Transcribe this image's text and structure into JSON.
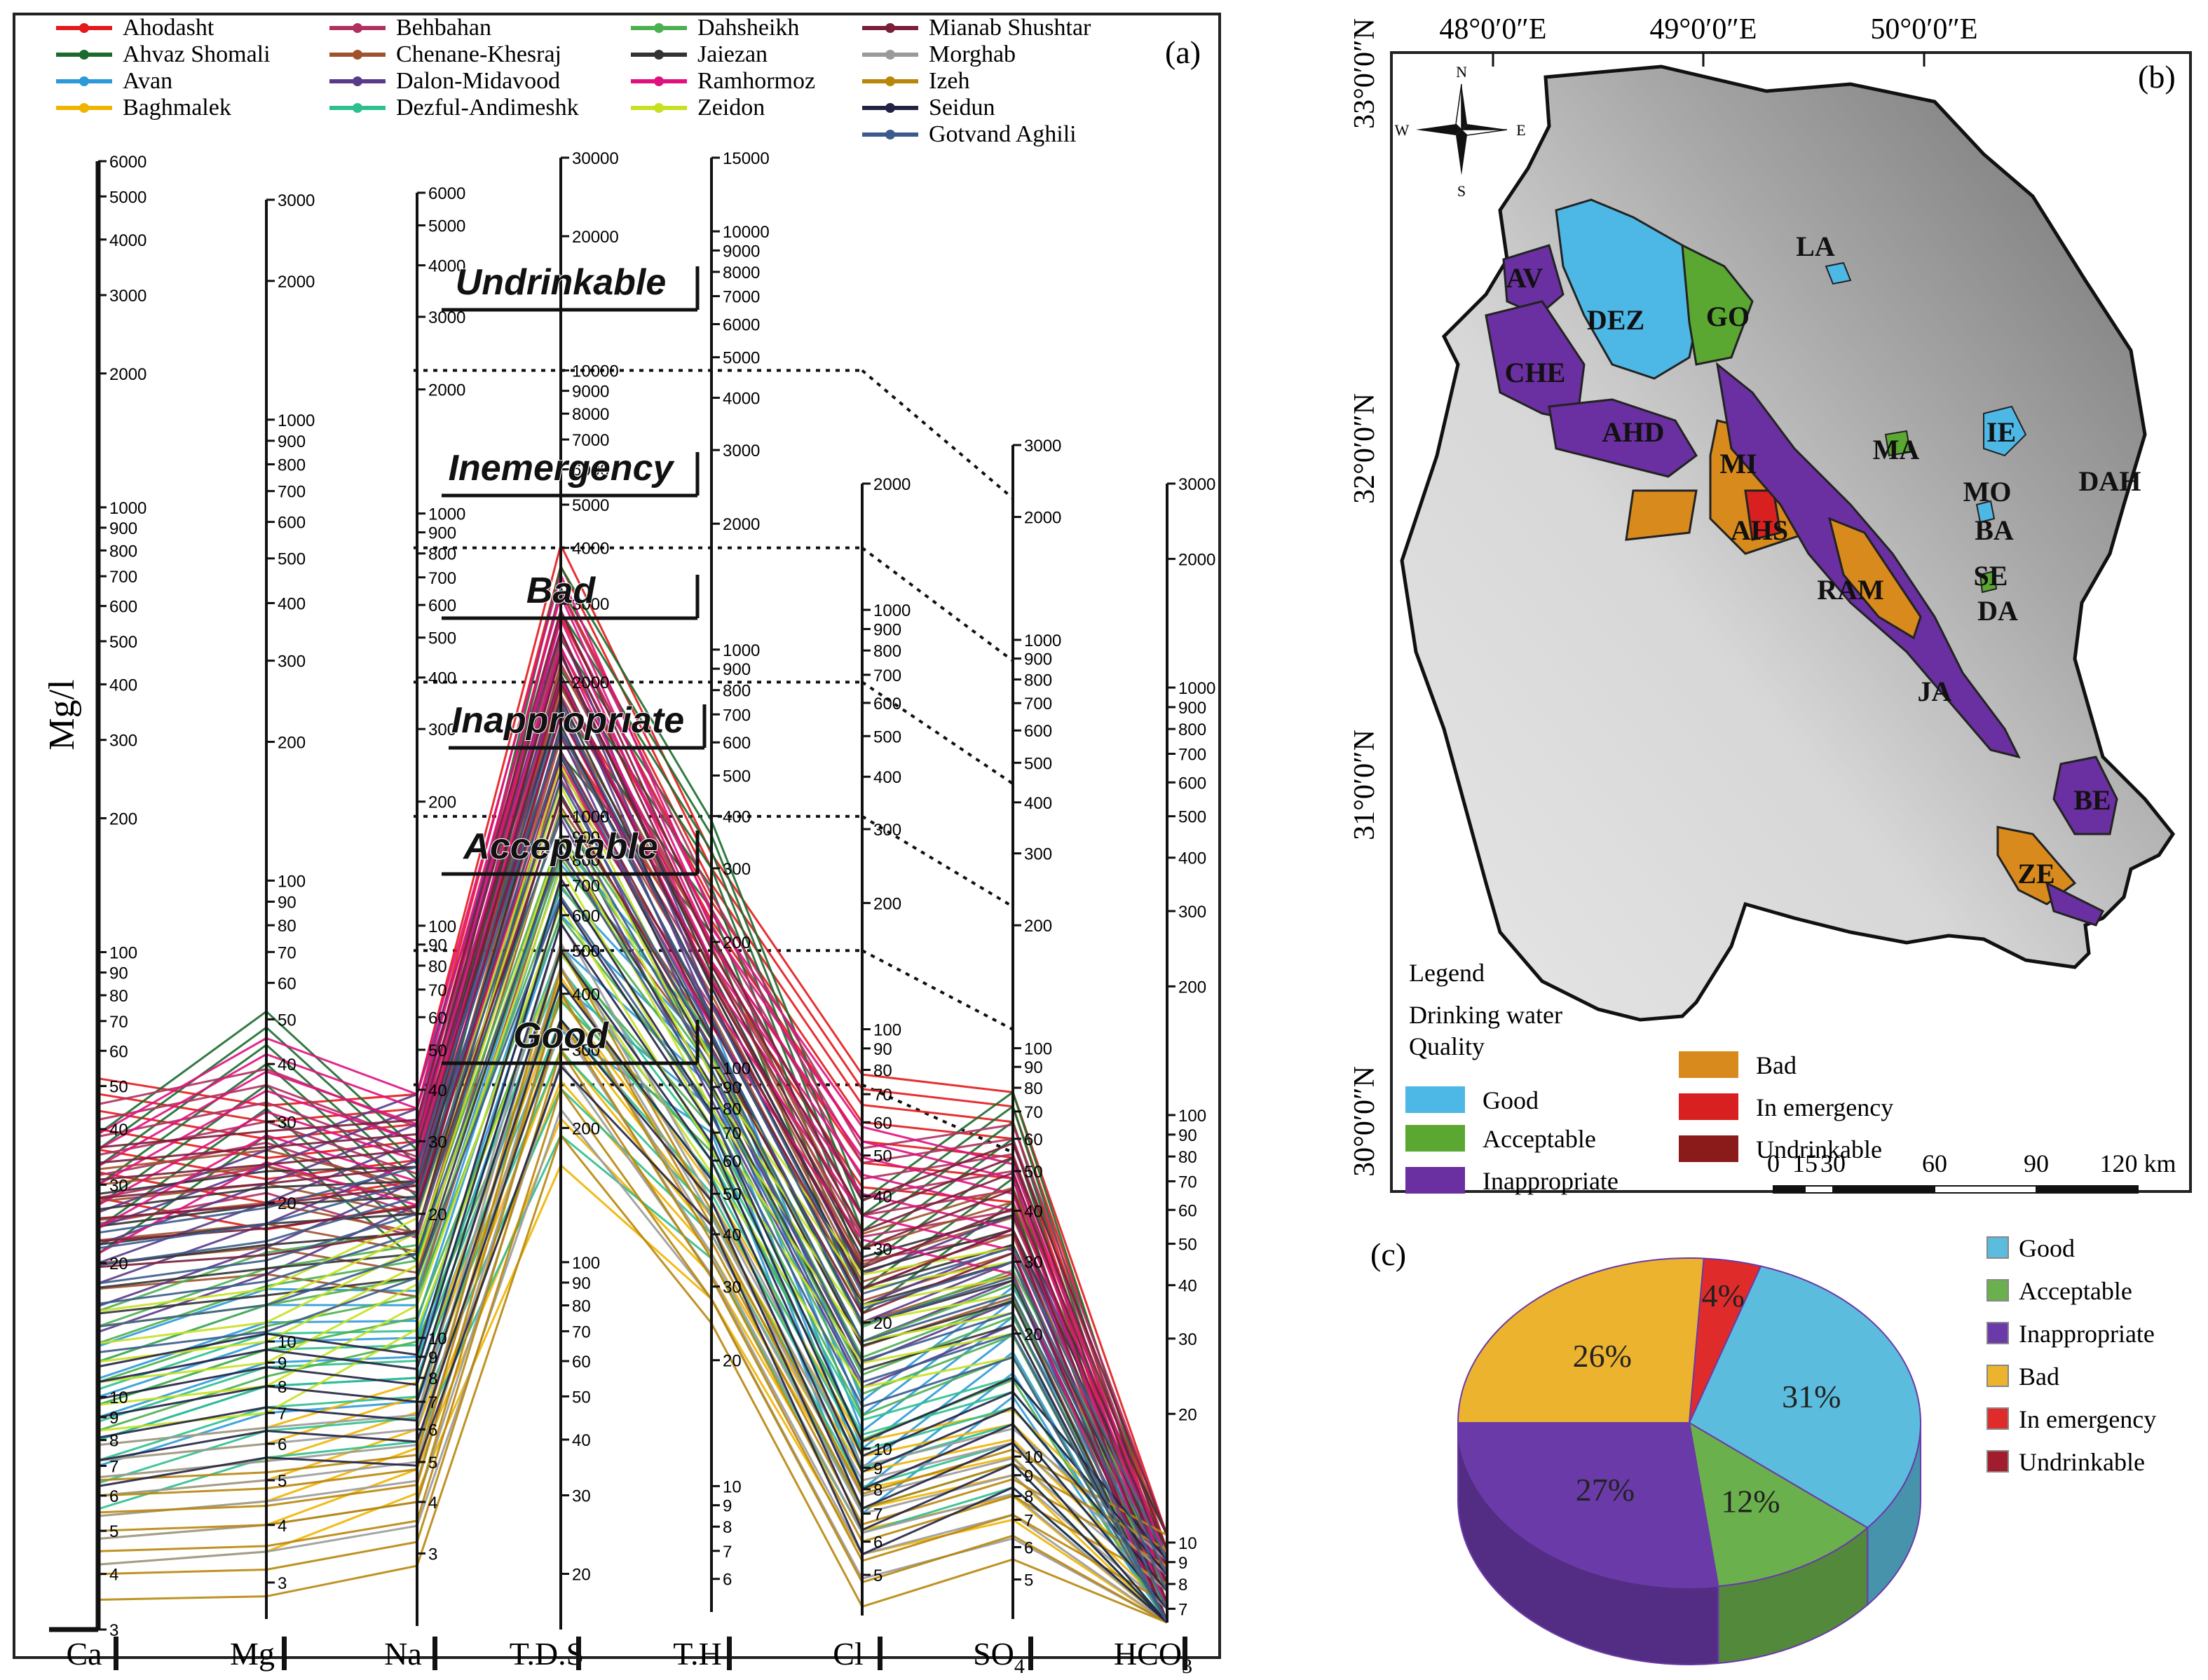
{
  "panel_a": {
    "label": "(a)",
    "y_unit": "Mg/l",
    "legend_columns": [
      [
        {
          "name": "Ahodasht",
          "color": "#e31a1c"
        },
        {
          "name": "Ahvaz Shomali",
          "color": "#1b6b2e"
        },
        {
          "name": "Avan",
          "color": "#2c9ad8"
        },
        {
          "name": "Baghmalek",
          "color": "#f0b400"
        }
      ],
      [
        {
          "name": "Behbahan",
          "color": "#b03060"
        },
        {
          "name": "Chenane-Khesraj",
          "color": "#a0522d"
        },
        {
          "name": "Dalon-Midavood",
          "color": "#5a3a8a"
        },
        {
          "name": "Dezful-Andimeshk",
          "color": "#2ebf8f"
        }
      ],
      [
        {
          "name": "Dahsheikh",
          "color": "#4caf50"
        },
        {
          "name": "Jaiezan",
          "color": "#333333"
        },
        {
          "name": "Ramhormoz",
          "color": "#e0117f"
        },
        {
          "name": "Zeidon",
          "color": "#c8e020"
        }
      ],
      [
        {
          "name": "Mianab Shushtar",
          "color": "#7b1e3a"
        },
        {
          "name": "Morghab",
          "color": "#9a9a9a"
        },
        {
          "name": "Izeh",
          "color": "#b8860b"
        },
        {
          "name": "Seidun",
          "color": "#222244"
        },
        {
          "name": "Gotvand Aghili",
          "color": "#3b5b8a"
        }
      ]
    ],
    "axes": [
      {
        "name": "Ca",
        "sub": "",
        "min": 3,
        "max": 6000,
        "ticks": [
          "6000",
          "5000",
          "4000",
          "3000",
          "2000",
          "1000",
          "900",
          "800",
          "700",
          "600",
          "500",
          "400",
          "300",
          "200",
          "100",
          "90",
          "80",
          "70",
          "60",
          "50",
          "40",
          "30",
          "20",
          "10",
          "9",
          "8",
          "7",
          "6",
          "5",
          "4",
          "3"
        ]
      },
      {
        "name": "Mg",
        "sub": "",
        "min": 2.5,
        "max": 3000,
        "ticks": [
          "3000",
          "2000",
          "1000",
          "900",
          "800",
          "700",
          "600",
          "500",
          "400",
          "300",
          "200",
          "100",
          "90",
          "80",
          "70",
          "60",
          "50",
          "40",
          "30",
          "20",
          "10",
          "9",
          "8",
          "7",
          "6",
          "5",
          "4",
          "3"
        ]
      },
      {
        "name": "Na",
        "sub": "",
        "min": 2,
        "max": 6000,
        "ticks": [
          "6000",
          "5000",
          "4000",
          "3000",
          "2000",
          "1000",
          "900",
          "800",
          "700",
          "600",
          "500",
          "400",
          "300",
          "200",
          "100",
          "90",
          "80",
          "70",
          "60",
          "50",
          "40",
          "30",
          "20",
          "10",
          "9",
          "8",
          "7",
          "6",
          "5",
          "4",
          "3"
        ]
      },
      {
        "name": "T.D.S",
        "sub": "",
        "min": 15,
        "max": 30000,
        "ticks": [
          "30000",
          "20000",
          "10000",
          "9000",
          "8000",
          "7000",
          "6000",
          "5000",
          "4000",
          "3000",
          "2000",
          "1000",
          "900",
          "800",
          "700",
          "600",
          "500",
          "400",
          "300",
          "200",
          "100",
          "90",
          "80",
          "70",
          "60",
          "50",
          "40",
          "30",
          "20"
        ]
      },
      {
        "name": "T.H",
        "sub": "",
        "min": 5,
        "max": 15000,
        "ticks": [
          "15000",
          "10000",
          "9000",
          "8000",
          "7000",
          "6000",
          "5000",
          "4000",
          "3000",
          "2000",
          "1000",
          "900",
          "800",
          "700",
          "600",
          "500",
          "400",
          "300",
          "200",
          "100",
          "90",
          "80",
          "70",
          "60",
          "50",
          "40",
          "30",
          "20",
          "10",
          "9",
          "8",
          "7",
          "6"
        ]
      },
      {
        "name": "Cl",
        "sub": "",
        "min": 4,
        "max": 2000,
        "ticks": [
          "2000",
          "1000",
          "900",
          "800",
          "700",
          "600",
          "500",
          "400",
          "300",
          "200",
          "100",
          "90",
          "80",
          "70",
          "60",
          "50",
          "40",
          "30",
          "20",
          "10",
          "9",
          "8",
          "7",
          "6",
          "5"
        ]
      },
      {
        "name": "SO",
        "sub": "4",
        "min": 4,
        "max": 3000,
        "ticks": [
          "3000",
          "2000",
          "1000",
          "900",
          "800",
          "700",
          "600",
          "500",
          "400",
          "300",
          "200",
          "100",
          "90",
          "80",
          "70",
          "60",
          "50",
          "40",
          "30",
          "20",
          "10",
          "9",
          "8",
          "7",
          "6",
          "5"
        ]
      },
      {
        "name": "HCO",
        "sub": "3",
        "min": 6.5,
        "max": 3000,
        "ticks": [
          "3000",
          "2000",
          "1000",
          "900",
          "800",
          "700",
          "600",
          "500",
          "400",
          "300",
          "200",
          "100",
          "90",
          "80",
          "70",
          "60",
          "50",
          "40",
          "30",
          "20",
          "10",
          "9",
          "8",
          "7"
        ]
      }
    ],
    "classes": [
      "Undrinkable",
      "Inemergency",
      "Bad",
      "Inappropriate",
      "Acceptable",
      "Good"
    ]
  },
  "panel_b": {
    "label": "(b)",
    "lon_labels": [
      "48°0′0″E",
      "49°0′0″E",
      "50°0′0″E"
    ],
    "lat_labels": [
      "33°0′0″N",
      "32°0′0″N",
      "31°0′0″N",
      "30°0′0″N"
    ],
    "compass": {
      "n": "N",
      "s": "S",
      "e": "E",
      "w": "W"
    },
    "region_labels": [
      "LA",
      "AV",
      "DEZ",
      "GO",
      "CHE",
      "AHD",
      "MI",
      "AHS",
      "MA",
      "IE",
      "MO",
      "DAH",
      "BA",
      "SE",
      "DA",
      "RAM",
      "JA",
      "BE",
      "ZE"
    ],
    "legend_title": "Legend",
    "legend_subtitle_1": "Drinking water",
    "legend_subtitle_2": "Quality",
    "legend_items": [
      {
        "name": "Good",
        "color": "#4db8e6"
      },
      {
        "name": "Acceptable",
        "color": "#5aa832"
      },
      {
        "name": "Inappropriate",
        "color": "#6a2fa0"
      },
      {
        "name": "Bad",
        "color": "#d98a1c"
      },
      {
        "name": "In emergency",
        "color": "#d92020"
      },
      {
        "name": "Undrinkable",
        "color": "#8b1a1a"
      }
    ],
    "scale_ticks": [
      "0",
      "15",
      "30",
      "60",
      "90",
      "120 km"
    ]
  },
  "panel_c": {
    "label": "(c)",
    "legend": [
      {
        "name": "Good",
        "color": "#5bbcdd"
      },
      {
        "name": "Acceptable",
        "color": "#6ab04c"
      },
      {
        "name": "Inappropriate",
        "color": "#6a3aa8"
      },
      {
        "name": "Bad",
        "color": "#ecb32e"
      },
      {
        "name": "In emergency",
        "color": "#e02b2b"
      },
      {
        "name": "Undrinkable",
        "color": "#a11c2c"
      }
    ]
  },
  "chart_data": [
    {
      "type": "line",
      "subtype": "schoeller-diagram",
      "axes": [
        "Ca",
        "Mg",
        "Na",
        "T.D.S",
        "T.H",
        "Cl",
        "SO4",
        "HCO3"
      ],
      "ylabel": "Mg/l",
      "scale": "log",
      "series": [
        {
          "name": "Ahodasht",
          "values": [
            40,
            25,
            30,
            2800,
            250,
            60,
            60,
            8
          ]
        },
        {
          "name": "Ahvaz Shomali",
          "values": [
            30,
            40,
            22,
            2500,
            300,
            30,
            60,
            7
          ]
        },
        {
          "name": "Avan",
          "values": [
            10,
            10,
            10,
            600,
            100,
            10,
            20,
            7
          ]
        },
        {
          "name": "Baghmalek",
          "values": [
            6,
            5,
            6,
            300,
            40,
            8,
            10,
            7
          ]
        },
        {
          "name": "Behbahan",
          "values": [
            35,
            30,
            25,
            2200,
            200,
            40,
            50,
            8
          ]
        },
        {
          "name": "Chenane-Khesraj",
          "values": [
            25,
            20,
            18,
            1500,
            150,
            25,
            35,
            8
          ]
        },
        {
          "name": "Dalon-Midavood",
          "values": [
            20,
            20,
            30,
            1800,
            120,
            20,
            30,
            7
          ]
        },
        {
          "name": "Dezful-Andimeshk",
          "values": [
            8,
            8,
            8,
            350,
            50,
            9,
            12,
            7
          ]
        },
        {
          "name": "Dahsheikh",
          "values": [
            12,
            12,
            14,
            700,
            90,
            15,
            22,
            7
          ]
        },
        {
          "name": "Jaiezan",
          "values": [
            22,
            18,
            20,
            1600,
            130,
            22,
            30,
            8
          ]
        },
        {
          "name": "Ramhormoz",
          "values": [
            30,
            35,
            30,
            2400,
            180,
            45,
            40,
            7
          ]
        },
        {
          "name": "Zeidon",
          "values": [
            12,
            10,
            15,
            900,
            80,
            20,
            25,
            7
          ]
        },
        {
          "name": "Mianab Shushtar",
          "values": [
            28,
            22,
            26,
            2000,
            160,
            30,
            45,
            8
          ]
        },
        {
          "name": "Morghab",
          "values": [
            6,
            5,
            5,
            400,
            40,
            7,
            9,
            7
          ]
        },
        {
          "name": "Izeh",
          "values": [
            5,
            4,
            4,
            350,
            35,
            6,
            8,
            8
          ]
        },
        {
          "name": "Seidun",
          "values": [
            9,
            8,
            7,
            500,
            60,
            8,
            12,
            7
          ]
        },
        {
          "name": "Gotvand Aghili",
          "values": [
            18,
            15,
            20,
            1200,
            110,
            18,
            25,
            7
          ]
        }
      ],
      "class_boundaries_tds": {
        "Undrinkable": 10000,
        "Inemergency": 4000,
        "Bad": 2000,
        "Inappropriate": 1000,
        "Acceptable": 500,
        "Good": 250
      }
    },
    {
      "type": "pie",
      "categories": [
        "Good",
        "Acceptable",
        "Inappropriate",
        "Bad",
        "In emergency",
        "Undrinkable"
      ],
      "values": [
        31,
        12,
        27,
        26,
        4,
        0
      ],
      "value_labels": [
        "31%",
        "12%",
        "27%",
        "26%",
        "4%",
        ""
      ]
    }
  ]
}
